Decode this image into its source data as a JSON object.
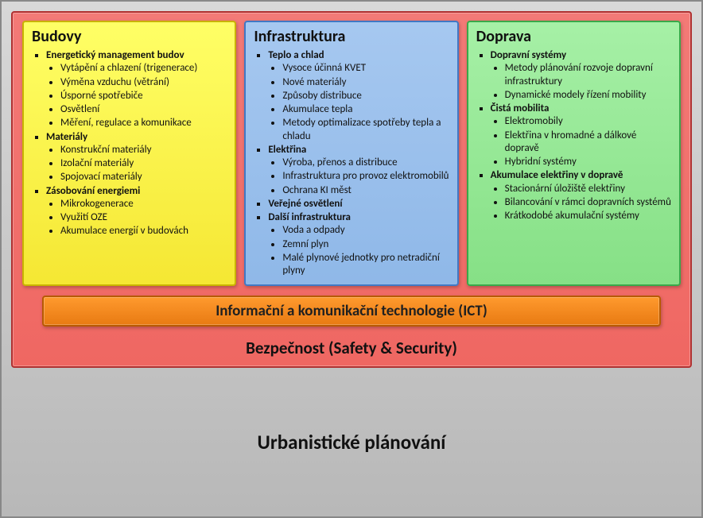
{
  "diagram": {
    "type": "nested-infographic",
    "outer": {
      "background_from": "#d8d8d8",
      "background_to": "#b8b8b8",
      "border": "#888888",
      "caption": "Urbanistické plánování",
      "caption_fontsize": 25
    },
    "inner": {
      "background_from": "#f37a77",
      "background_to": "#ef6762",
      "border": "#b03030",
      "caption": "Bezpečnost (Safety & Security)",
      "caption_fontsize": 21
    },
    "orange_bar": {
      "label": "Informační a komunikační technologie (ICT)",
      "background_from": "#ff9a2e",
      "background_to": "#e87a12",
      "border": "#b85a00",
      "fontsize": 19
    },
    "panels": [
      {
        "id": "budovy",
        "title": "Budovy",
        "color_class": "yellow",
        "background_from": "#ffff66",
        "background_to": "#f5e733",
        "border": "#c9b300",
        "sections": [
          {
            "heading": "Energetický management budov",
            "items": [
              "Vytápění a chlazení (trigenerace)",
              "Výměna vzduchu (větrání)",
              "Úsporné spotřebiče",
              "Osvětlení",
              "Měření, regulace a komunikace"
            ]
          },
          {
            "heading": "Materiály",
            "items": [
              "Konstrukční materiály",
              "Izolační materiály",
              "Spojovací materiály"
            ]
          },
          {
            "heading": "Zásobování energiemi",
            "items": [
              "Mikrokogenerace",
              "Využití OZE",
              "Akumulace energií v budovách"
            ]
          }
        ]
      },
      {
        "id": "infrastruktura",
        "title": "Infrastruktura",
        "color_class": "blue",
        "background_from": "#a6c8f0",
        "background_to": "#8fb8e8",
        "border": "#4178c4",
        "sections": [
          {
            "heading": "Teplo a chlad",
            "items": [
              "Vysoce účinná KVET",
              "Nové materiály",
              "Způsoby distribuce",
              "Akumulace tepla",
              "Metody optimalizace spotřeby tepla a chladu"
            ]
          },
          {
            "heading": "Elektřina",
            "items": [
              "Výroba, přenos a distribuce",
              "Infrastruktura pro provoz elektromobilů",
              "Ochrana KI měst"
            ]
          },
          {
            "heading": "Veřejné osvětlení",
            "items": []
          },
          {
            "heading": "Další infrastruktura",
            "items": [
              "Voda a odpady",
              "Zemní plyn",
              "Malé plynové jednotky pro netradiční plyny"
            ]
          }
        ]
      },
      {
        "id": "doprava",
        "title": "Doprava",
        "color_class": "green",
        "background_from": "#a6f0a6",
        "background_to": "#86e086",
        "border": "#3aa84a",
        "sections": [
          {
            "heading": "Dopravní systémy",
            "items": [
              "Metody plánování rozvoje dopravní infrastruktury",
              "Dynamické modely řízení mobility"
            ]
          },
          {
            "heading": "Čistá mobilita",
            "items": [
              "Elektromobily",
              "Elektřina v hromadné a dálkové dopravě",
              "Hybridní systémy"
            ]
          },
          {
            "heading": "Akumulace elektřiny v dopravě",
            "items": [
              "Stacionární úložiště elektřiny",
              "Bilancování v rámci dopravních systémů",
              "Krátkodobé akumulační systémy"
            ]
          }
        ]
      }
    ]
  }
}
